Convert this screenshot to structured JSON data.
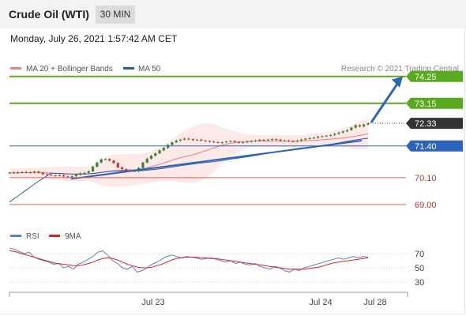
{
  "header": {
    "title": "Crude Oil (WTI)",
    "interval": "30 MIN",
    "datetime": "Monday, July 26, 2021 1:57:42 AM CET"
  },
  "legend": {
    "ma20_bb": "MA 20 + Bollinger Bands",
    "ma50": "MA 50",
    "credit": "Research © 2021 Trading Central",
    "rsi": "RSI",
    "rsi_ma": "9MA"
  },
  "colors": {
    "resistance": "#5aaa1f",
    "support": "#e06060",
    "current": "#333333",
    "pivot": "#2b64b8",
    "ma20": "#f08080",
    "ma50": "#2b5aa8",
    "rsi": "#5b7fd6",
    "rsi_ma": "#e02020",
    "arrow": "#2b64b8"
  },
  "chart_data": [
    {
      "type": "line",
      "title": "",
      "interval": "30 MIN",
      "levels": [
        {
          "role": "resistance",
          "value": 74.25,
          "label": "74.25"
        },
        {
          "role": "resistance",
          "value": 73.15,
          "label": "73.15"
        },
        {
          "role": "current",
          "value": 72.33,
          "label": "72.33"
        },
        {
          "role": "pivot",
          "value": 71.4,
          "label": "71.40"
        },
        {
          "role": "support",
          "value": 70.1,
          "label": "70.10"
        },
        {
          "role": "support",
          "value": 69.0,
          "label": "69.00"
        }
      ],
      "x_labels": [
        "Jul 23",
        "Jul 24",
        "Jul 28"
      ],
      "series": [
        {
          "name": "MA 20 + Bollinger Bands"
        },
        {
          "name": "MA 50"
        }
      ],
      "close_prices": [
        70.3,
        70.31,
        70.3,
        70.33,
        70.32,
        70.31,
        70.35,
        70.3,
        70.24,
        70.22,
        70.19,
        70.18,
        70.2,
        70.15,
        70.12,
        70.16,
        70.22,
        70.28,
        70.3,
        70.36,
        70.55,
        70.72,
        70.85,
        70.86,
        70.8,
        70.7,
        70.52,
        70.45,
        70.4,
        70.38,
        70.36,
        70.5,
        70.72,
        70.88,
        71.0,
        71.1,
        71.22,
        71.32,
        71.44,
        71.55,
        71.62,
        71.66,
        71.7,
        71.68,
        71.64,
        71.66,
        71.62,
        71.6,
        71.58,
        71.56,
        71.54,
        71.55,
        71.58,
        71.6,
        71.56,
        71.54,
        71.55,
        71.58,
        71.6,
        71.62,
        71.65,
        71.64,
        71.66,
        71.68,
        71.66,
        71.62,
        71.62,
        71.6,
        71.58,
        71.62,
        71.66,
        71.7,
        71.72,
        71.74,
        71.78,
        71.8,
        71.82,
        71.85,
        71.9,
        71.95,
        72.0,
        72.05,
        72.15,
        72.25,
        72.2,
        72.28,
        72.33
      ],
      "ylim": [
        68.25,
        74.6
      ],
      "arrow": {
        "from": 72.33,
        "to": 74.25
      }
    },
    {
      "type": "line",
      "title": "",
      "yticks": [
        70,
        50,
        30
      ],
      "ylim": [
        20,
        80
      ],
      "series": [
        {
          "name": "RSI",
          "values": [
            78,
            76,
            73,
            70,
            72,
            65,
            62,
            60,
            58,
            55,
            56,
            50,
            52,
            48,
            55,
            58,
            62,
            66,
            72,
            74,
            68,
            60,
            56,
            50,
            48,
            52,
            44,
            46,
            50,
            55,
            58,
            62,
            66,
            68,
            66,
            64,
            66,
            65,
            64,
            62,
            63,
            64,
            62,
            60,
            58,
            60,
            56,
            58,
            55,
            54,
            56,
            52,
            50,
            48,
            52,
            50,
            46,
            44,
            48,
            46,
            50,
            52,
            54,
            56,
            58,
            60,
            62,
            64,
            62,
            64,
            66,
            64,
            66,
            65
          ]
        },
        {
          "name": "9MA",
          "values": [
            74,
            73,
            71,
            69,
            67,
            65,
            63,
            61,
            59,
            57,
            56,
            55,
            54,
            53,
            53,
            54,
            56,
            58,
            61,
            63,
            64,
            63,
            61,
            58,
            55,
            53,
            51,
            50,
            50,
            51,
            53,
            55,
            58,
            61,
            63,
            64,
            65,
            65,
            65,
            64,
            64,
            63,
            63,
            62,
            61,
            60,
            59,
            58,
            57,
            56,
            55,
            54,
            53,
            52,
            51,
            50,
            49,
            48,
            48,
            48,
            48,
            49,
            50,
            51,
            53,
            55,
            57,
            58,
            59,
            60,
            61,
            62,
            63,
            64
          ]
        }
      ]
    }
  ]
}
